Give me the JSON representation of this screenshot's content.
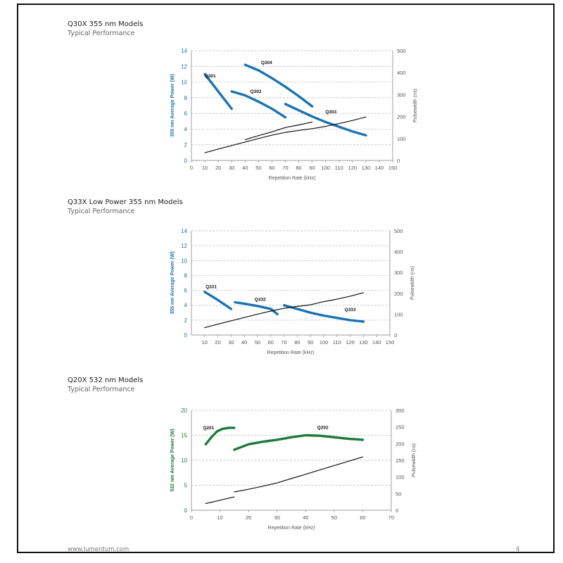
{
  "sections": [
    {
      "title": "Q30X 355 nm Models",
      "subtitle": "Typical Performance"
    },
    {
      "title": "Q33X Low Power 355 nm Models",
      "subtitle": "Typical Performance"
    },
    {
      "title": "Q20X 532 nm Models",
      "subtitle": "Typical Performance"
    }
  ],
  "footer": {
    "website": "www.lumentum.com",
    "page_number": "4"
  },
  "chart_data": [
    {
      "type": "line",
      "color": "#1a73b0",
      "xlabel": "Repetition Rate (kHz)",
      "ylabel": "355 nm Average Power (W)",
      "y2label": "Pulsewidth (ns)",
      "xlim": [
        0,
        150
      ],
      "ylim": [
        0,
        14
      ],
      "y2lim": [
        0,
        500
      ],
      "xticks": [
        0,
        10,
        20,
        30,
        40,
        50,
        60,
        70,
        80,
        90,
        100,
        110,
        120,
        130,
        140,
        150
      ],
      "yticks": [
        0,
        2,
        4,
        6,
        8,
        10,
        12,
        14
      ],
      "y2ticks": [
        0,
        100,
        200,
        300,
        400,
        500
      ],
      "grid": "horizontal dashed",
      "series": [
        {
          "name": "Q301",
          "axis": "left",
          "points": [
            [
              10,
              11
            ],
            [
              20,
              8.8
            ],
            [
              30,
              6.6
            ]
          ],
          "label_at": [
            14,
            10.6
          ]
        },
        {
          "name": "Q302",
          "axis": "left",
          "points": [
            [
              30,
              8.8
            ],
            [
              40,
              8.3
            ],
            [
              50,
              7.5
            ],
            [
              60,
              6.6
            ],
            [
              70,
              5.5
            ]
          ],
          "label_at": [
            48,
            8.6
          ]
        },
        {
          "name": "Q304",
          "axis": "left",
          "points": [
            [
              40,
              12.2
            ],
            [
              50,
              11.5
            ],
            [
              60,
              10.5
            ],
            [
              70,
              9.4
            ],
            [
              80,
              8.2
            ],
            [
              90,
              6.9
            ]
          ],
          "label_at": [
            56,
            12.3
          ]
        },
        {
          "name": "Q303",
          "axis": "left",
          "points": [
            [
              70,
              7.2
            ],
            [
              80,
              6.4
            ],
            [
              90,
              5.6
            ],
            [
              100,
              4.9
            ],
            [
              110,
              4.3
            ],
            [
              120,
              3.7
            ],
            [
              130,
              3.2
            ]
          ],
          "label_at": [
            104,
            6
          ]
        },
        {
          "name": "",
          "axis": "right",
          "style": "thin",
          "points": [
            [
              10,
              35
            ],
            [
              20,
              52
            ],
            [
              30,
              68
            ],
            [
              40,
              84
            ],
            [
              50,
              100
            ],
            [
              60,
              115
            ],
            [
              70,
              128
            ],
            [
              80,
              137
            ],
            [
              90,
              145
            ],
            [
              100,
              155
            ],
            [
              110,
              168
            ],
            [
              120,
              182
            ],
            [
              130,
              198
            ]
          ]
        },
        {
          "name": "",
          "axis": "right",
          "style": "thin",
          "points": [
            [
              40,
              95
            ],
            [
              50,
              113
            ],
            [
              60,
              130
            ],
            [
              70,
              150
            ],
            [
              80,
              162
            ],
            [
              90,
              175
            ]
          ]
        }
      ]
    },
    {
      "type": "line",
      "color": "#1a73b0",
      "xlabel": "Repetition Rate (kHz)",
      "ylabel": "355 nm Average Power (W)",
      "y2label": "Pulsewidth (ns)",
      "xlim": [
        0,
        150
      ],
      "ylim": [
        0,
        14
      ],
      "y2lim": [
        0,
        500
      ],
      "xticks": [
        10,
        20,
        30,
        40,
        50,
        60,
        70,
        80,
        90,
        100,
        110,
        120,
        130,
        140,
        150
      ],
      "yticks": [
        0,
        2,
        4,
        6,
        8,
        10,
        12,
        14
      ],
      "y2ticks": [
        0,
        100,
        200,
        300,
        400,
        500
      ],
      "grid": "horizontal dashed",
      "series": [
        {
          "name": "Q331",
          "axis": "left",
          "points": [
            [
              10,
              5.8
            ],
            [
              20,
              4.7
            ],
            [
              30,
              3.5
            ]
          ],
          "label_at": [
            15,
            6.3
          ]
        },
        {
          "name": "Q332",
          "axis": "left",
          "points": [
            [
              33,
              4.4
            ],
            [
              40,
              4.2
            ],
            [
              50,
              3.9
            ],
            [
              60,
              3.5
            ],
            [
              65,
              2.8
            ]
          ],
          "label_at": [
            52,
            4.6
          ]
        },
        {
          "name": "Q333",
          "axis": "left",
          "points": [
            [
              70,
              4
            ],
            [
              80,
              3.5
            ],
            [
              90,
              3
            ],
            [
              100,
              2.6
            ],
            [
              110,
              2.3
            ],
            [
              120,
              2
            ],
            [
              130,
              1.8
            ]
          ],
          "label_at": [
            120,
            3.2
          ]
        },
        {
          "name": "",
          "axis": "right",
          "style": "thin",
          "points": [
            [
              10,
              35
            ],
            [
              20,
              52
            ],
            [
              30,
              68
            ],
            [
              40,
              84
            ],
            [
              50,
              100
            ],
            [
              60,
              115
            ],
            [
              70,
              128
            ],
            [
              80,
              137
            ],
            [
              90,
              145
            ],
            [
              100,
              160
            ],
            [
              110,
              172
            ],
            [
              120,
              186
            ],
            [
              130,
              203
            ]
          ]
        }
      ]
    },
    {
      "type": "line",
      "color": "#1d7a3a",
      "xlabel": "Repetition Rate (kHz)",
      "ylabel": "532 nm Average Power (W)",
      "y2label": "Pulsewidth (ns)",
      "xlim": [
        0,
        70
      ],
      "ylim": [
        0,
        20
      ],
      "y2lim": [
        0,
        300
      ],
      "xticks": [
        0,
        10,
        20,
        30,
        40,
        50,
        60,
        70
      ],
      "yticks": [
        0,
        5,
        10,
        15,
        20
      ],
      "y2ticks": [
        0,
        50,
        100,
        150,
        200,
        250,
        300
      ],
      "grid": "horizontal dashed",
      "series": [
        {
          "name": "Q201",
          "axis": "left",
          "points": [
            [
              5,
              13.2
            ],
            [
              7,
              14.6
            ],
            [
              9,
              15.8
            ],
            [
              11,
              16.3
            ],
            [
              13,
              16.5
            ],
            [
              15,
              16.5
            ]
          ],
          "label_at": [
            6,
            16.2
          ]
        },
        {
          "name": "Q202",
          "axis": "left",
          "points": [
            [
              15,
              12.1
            ],
            [
              20,
              13.2
            ],
            [
              25,
              13.7
            ],
            [
              30,
              14.1
            ],
            [
              35,
              14.6
            ],
            [
              40,
              15
            ],
            [
              45,
              14.9
            ],
            [
              50,
              14.6
            ],
            [
              55,
              14.3
            ],
            [
              60,
              14.1
            ]
          ],
          "label_at": [
            46,
            16.3
          ]
        },
        {
          "name": "",
          "axis": "right",
          "style": "thin",
          "points": [
            [
              5,
              20
            ],
            [
              10,
              30
            ],
            [
              15,
              40
            ]
          ]
        },
        {
          "name": "",
          "axis": "right",
          "style": "thin",
          "points": [
            [
              15,
              55
            ],
            [
              20,
              63
            ],
            [
              25,
              72
            ],
            [
              30,
              82
            ],
            [
              35,
              95
            ],
            [
              40,
              108
            ],
            [
              45,
              121
            ],
            [
              50,
              134
            ],
            [
              55,
              147
            ],
            [
              60,
              160
            ]
          ]
        }
      ]
    }
  ]
}
